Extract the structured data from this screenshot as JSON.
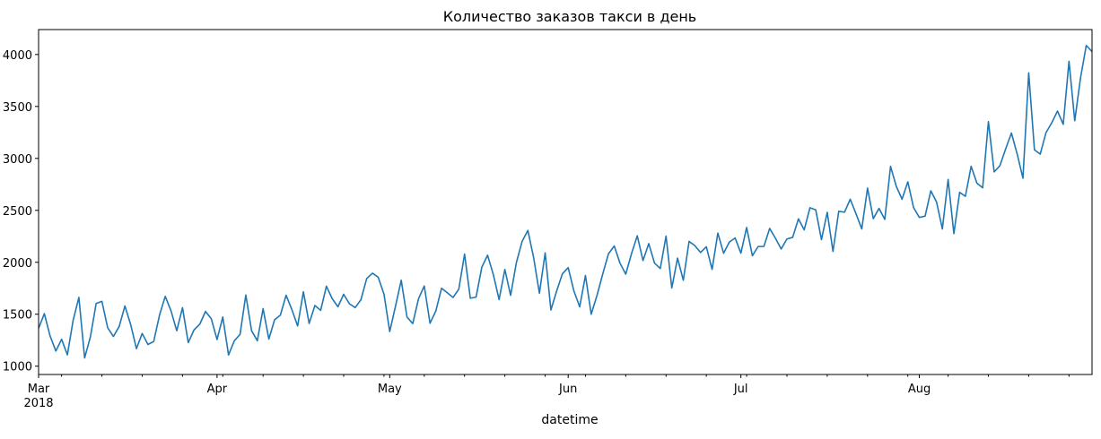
{
  "chart_data": {
    "type": "line",
    "title": "Количество заказов такси в день",
    "xlabel": "datetime",
    "ylabel": "",
    "x_start": "2018-03-01",
    "x_end": "2018-08-31",
    "ylim": [
      920,
      4240
    ],
    "yticks": [
      1000,
      1500,
      2000,
      2500,
      3000,
      3500,
      4000
    ],
    "xticks": [
      {
        "date": "2018-03-01",
        "label": "Mar",
        "sublabel": "2018"
      },
      {
        "date": "2018-04-01",
        "label": "Apr",
        "sublabel": ""
      },
      {
        "date": "2018-05-01",
        "label": "May",
        "sublabel": ""
      },
      {
        "date": "2018-06-01",
        "label": "Jun",
        "sublabel": ""
      },
      {
        "date": "2018-07-01",
        "label": "Jul",
        "sublabel": ""
      },
      {
        "date": "2018-08-01",
        "label": "Aug",
        "sublabel": ""
      }
    ],
    "grid": false,
    "series": [
      {
        "name": "",
        "color": "#1f77b4",
        "values": [
          1364,
          1506,
          1290,
          1146,
          1259,
          1109,
          1441,
          1662,
          1079,
          1282,
          1603,
          1624,
          1370,
          1286,
          1382,
          1580,
          1400,
          1169,
          1315,
          1209,
          1238,
          1490,
          1672,
          1534,
          1341,
          1563,
          1227,
          1349,
          1404,
          1527,
          1457,
          1257,
          1473,
          1108,
          1244,
          1306,
          1685,
          1341,
          1245,
          1554,
          1261,
          1447,
          1491,
          1683,
          1545,
          1387,
          1716,
          1411,
          1584,
          1537,
          1770,
          1651,
          1572,
          1692,
          1600,
          1564,
          1640,
          1843,
          1895,
          1856,
          1694,
          1333,
          1577,
          1827,
          1473,
          1410,
          1649,
          1772,
          1413,
          1530,
          1750,
          1707,
          1661,
          1742,
          2079,
          1654,
          1665,
          1953,
          2068,
          1881,
          1641,
          1931,
          1681,
          1997,
          2202,
          2307,
          2044,
          1703,
          2090,
          1541,
          1724,
          1890,
          1949,
          1723,
          1571,
          1873,
          1500,
          1680,
          1887,
          2082,
          2157,
          1992,
          1886,
          2083,
          2255,
          2017,
          2180,
          1992,
          1940,
          2252,
          1753,
          2040,
          1827,
          2201,
          2161,
          2094,
          2149,
          1932,
          2281,
          2087,
          2195,
          2234,
          2088,
          2335,
          2063,
          2152,
          2153,
          2326,
          2232,
          2128,
          2224,
          2240,
          2418,
          2312,
          2525,
          2505,
          2218,
          2481,
          2105,
          2491,
          2482,
          2607,
          2467,
          2321,
          2714,
          2420,
          2519,
          2413,
          2923,
          2731,
          2607,
          2775,
          2526,
          2432,
          2444,
          2688,
          2579,
          2321,
          2797,
          2276,
          2673,
          2635,
          2924,
          2762,
          2717,
          3354,
          2870,
          2930,
          3092,
          3244,
          3042,
          2809,
          3823,
          3082,
          3041,
          3247,
          3342,
          3456,
          3328,
          3935,
          3362,
          3774,
          4087,
          4028
        ]
      }
    ]
  }
}
